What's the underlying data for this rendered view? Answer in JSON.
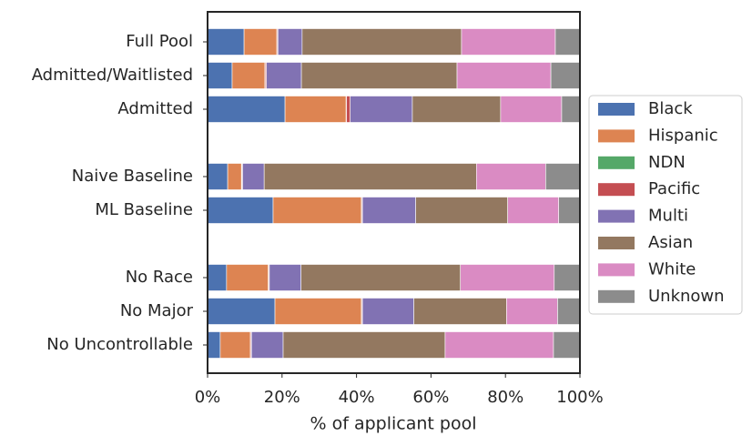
{
  "chart_data": {
    "type": "stacked_barh",
    "categories": [
      "Full Pool",
      "Admitted/Waitlisted",
      "Admitted",
      null,
      "Naive Baseline",
      "ML Baseline",
      null,
      "No Race",
      "No Major",
      "No Uncontrollable"
    ],
    "series": [
      {
        "name": "Black",
        "color": "#4c72b0",
        "values": [
          9.8,
          6.6,
          20.8,
          null,
          5.4,
          17.6,
          null,
          5.1,
          18.1,
          3.4
        ]
      },
      {
        "name": "Hispanic",
        "color": "#dd8452",
        "values": [
          8.8,
          8.8,
          16.4,
          null,
          3.7,
          23.7,
          null,
          11.2,
          23.2,
          8.1
        ]
      },
      {
        "name": "NDN",
        "color": "#55a868",
        "values": [
          0.1,
          0.1,
          0.1,
          null,
          0.1,
          0.1,
          null,
          0.1,
          0.1,
          0.1
        ]
      },
      {
        "name": "Pacific",
        "color": "#c44e52",
        "values": [
          0.2,
          0.3,
          1.0,
          null,
          0.2,
          0.2,
          null,
          0.2,
          0.2,
          0.2
        ]
      },
      {
        "name": "Multi",
        "color": "#8172b3",
        "values": [
          6.5,
          9.4,
          16.7,
          null,
          5.8,
          14.3,
          null,
          8.5,
          13.8,
          8.5
        ]
      },
      {
        "name": "Asian",
        "color": "#937860",
        "values": [
          42.8,
          41.8,
          23.7,
          null,
          57.0,
          24.7,
          null,
          42.8,
          24.9,
          43.5
        ]
      },
      {
        "name": "White",
        "color": "#da8bc3",
        "values": [
          25.2,
          25.2,
          16.4,
          null,
          18.6,
          13.7,
          null,
          25.2,
          13.7,
          29.1
        ]
      },
      {
        "name": "Unknown",
        "color": "#8c8c8c",
        "values": [
          6.6,
          7.8,
          4.9,
          null,
          9.2,
          5.7,
          null,
          6.9,
          6.0,
          7.1
        ]
      }
    ],
    "xlabel": "% of applicant pool",
    "xlim": [
      0,
      100
    ],
    "xticks": [
      {
        "value": 0,
        "label": "0%"
      },
      {
        "value": 20,
        "label": "20%"
      },
      {
        "value": 40,
        "label": "40%"
      },
      {
        "value": 60,
        "label": "60%"
      },
      {
        "value": 80,
        "label": "80%"
      },
      {
        "value": 100,
        "label": "100%"
      }
    ],
    "legend": "right"
  }
}
